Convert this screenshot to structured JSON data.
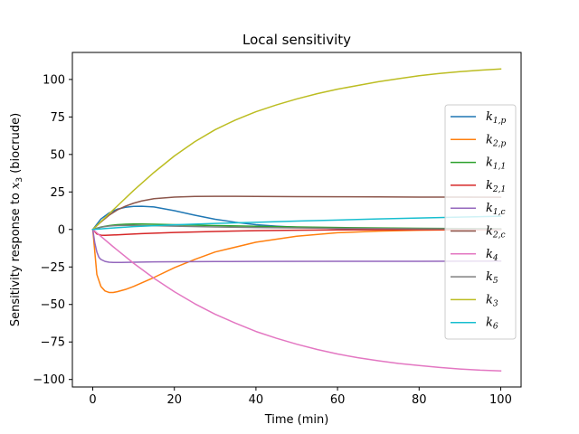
{
  "chart_data": {
    "type": "line",
    "title": "Local sensitivity",
    "xlabel": "Time (min)",
    "ylabel_prefix": "Sensitivity response to ",
    "ylabel_var": "x",
    "ylabel_sub": "3",
    "ylabel_suffix": " (biocrude)",
    "xlim": [
      -5,
      105
    ],
    "ylim": [
      -105,
      118
    ],
    "xticks": [
      0,
      20,
      40,
      60,
      80,
      100
    ],
    "yticks": [
      -100,
      -75,
      -50,
      -25,
      0,
      25,
      50,
      75,
      100
    ],
    "legend_position": "right",
    "series": [
      {
        "name": "k",
        "sub": "1,p",
        "color": "#1f77b4",
        "x": [
          0,
          2,
          4,
          6,
          8,
          10,
          12,
          15,
          20,
          25,
          30,
          35,
          40,
          45,
          50,
          60,
          70,
          80,
          90,
          100
        ],
        "y": [
          0,
          7,
          11,
          13.5,
          14.8,
          15.4,
          15.5,
          15,
          12.5,
          9.5,
          6.8,
          4.8,
          3.2,
          2.2,
          1.5,
          0.7,
          0.3,
          0.15,
          0.05,
          0
        ]
      },
      {
        "name": "k",
        "sub": "2,p",
        "color": "#ff7f0e",
        "x": [
          0,
          1,
          2,
          3,
          4,
          5,
          6,
          8,
          10,
          15,
          20,
          25,
          30,
          40,
          50,
          60,
          70,
          80,
          90,
          100
        ],
        "y": [
          0,
          -30,
          -38,
          -41,
          -42,
          -42,
          -41.5,
          -40,
          -38,
          -32,
          -25.5,
          -20,
          -15,
          -8.5,
          -4.5,
          -2.2,
          -1.1,
          -0.5,
          -0.2,
          0
        ]
      },
      {
        "name": "k",
        "sub": "1,1",
        "color": "#2ca02c",
        "x": [
          0,
          2,
          4,
          6,
          8,
          10,
          12,
          15,
          20,
          25,
          30,
          40,
          50,
          60,
          70,
          80,
          90,
          100
        ],
        "y": [
          0,
          1.6,
          2.6,
          3.2,
          3.5,
          3.6,
          3.6,
          3.5,
          3.2,
          2.9,
          2.6,
          2.1,
          1.7,
          1.3,
          1,
          0.8,
          0.6,
          0.5
        ]
      },
      {
        "name": "k",
        "sub": "2,1",
        "color": "#d62728",
        "x": [
          0,
          1,
          2,
          3,
          5,
          8,
          12,
          20,
          30,
          40,
          50,
          60,
          70,
          80,
          90,
          100
        ],
        "y": [
          0,
          -3,
          -3.8,
          -3.9,
          -3.7,
          -3.3,
          -2.8,
          -2,
          -1.3,
          -0.8,
          -0.5,
          -0.3,
          -0.2,
          -0.1,
          -0.05,
          0
        ]
      },
      {
        "name": "k",
        "sub": "1,c",
        "color": "#9467bd",
        "x": [
          0,
          0.5,
          1,
          1.5,
          2,
          3,
          4,
          5,
          7,
          10,
          15,
          20,
          30,
          40,
          60,
          80,
          100
        ],
        "y": [
          0,
          -9,
          -15,
          -18.5,
          -20,
          -21.3,
          -21.8,
          -22,
          -22,
          -21.8,
          -21.6,
          -21.5,
          -21.4,
          -21.3,
          -21.2,
          -21.2,
          -21.1
        ]
      },
      {
        "name": "k",
        "sub": "2,c",
        "color": "#8c564b",
        "x": [
          0,
          2,
          4,
          6,
          8,
          10,
          12,
          15,
          20,
          25,
          30,
          35,
          40,
          50,
          60,
          70,
          80,
          90,
          100
        ],
        "y": [
          0,
          5,
          9.5,
          13,
          15.5,
          17.5,
          19,
          20.5,
          21.6,
          22,
          22.1,
          22.1,
          22,
          21.9,
          21.8,
          21.7,
          21.6,
          21.6,
          21.5
        ]
      },
      {
        "name": "k",
        "sub": "4",
        "color": "#e377c2",
        "x": [
          0,
          5,
          10,
          15,
          20,
          25,
          30,
          35,
          40,
          45,
          50,
          55,
          60,
          65,
          70,
          75,
          80,
          85,
          90,
          95,
          100
        ],
        "y": [
          0,
          -11.5,
          -22.5,
          -32.5,
          -41.5,
          -49.5,
          -56.5,
          -62.5,
          -68,
          -72.5,
          -76.5,
          -80,
          -83,
          -85.5,
          -87.5,
          -89.3,
          -90.7,
          -92,
          -93,
          -93.8,
          -94.3
        ]
      },
      {
        "name": "k",
        "sub": "5",
        "color": "#7f7f7f",
        "x": [
          0,
          2,
          4,
          6,
          8,
          10,
          12,
          15,
          20,
          30,
          40,
          60,
          80,
          100
        ],
        "y": [
          0,
          1.5,
          2.3,
          2.6,
          2.7,
          2.7,
          2.6,
          2.5,
          2.2,
          1.7,
          1.3,
          0.8,
          0.5,
          0.3
        ]
      },
      {
        "name": "k",
        "sub": "3",
        "color": "#bcbd22",
        "x": [
          0,
          5,
          10,
          15,
          20,
          25,
          30,
          35,
          40,
          45,
          50,
          55,
          60,
          65,
          70,
          75,
          80,
          85,
          90,
          95,
          100
        ],
        "y": [
          0,
          13,
          26,
          38,
          49,
          58.5,
          66.5,
          73,
          78.5,
          83,
          87,
          90.5,
          93.5,
          96,
          98.5,
          100.5,
          102.5,
          104,
          105.2,
          106.2,
          107
        ]
      },
      {
        "name": "k",
        "sub": "6",
        "color": "#17becf",
        "x": [
          0,
          5,
          10,
          20,
          30,
          40,
          50,
          60,
          70,
          80,
          90,
          100
        ],
        "y": [
          0,
          1,
          1.9,
          3.1,
          4,
          4.8,
          5.6,
          6.3,
          7,
          7.6,
          8.2,
          8.8
        ]
      }
    ]
  }
}
